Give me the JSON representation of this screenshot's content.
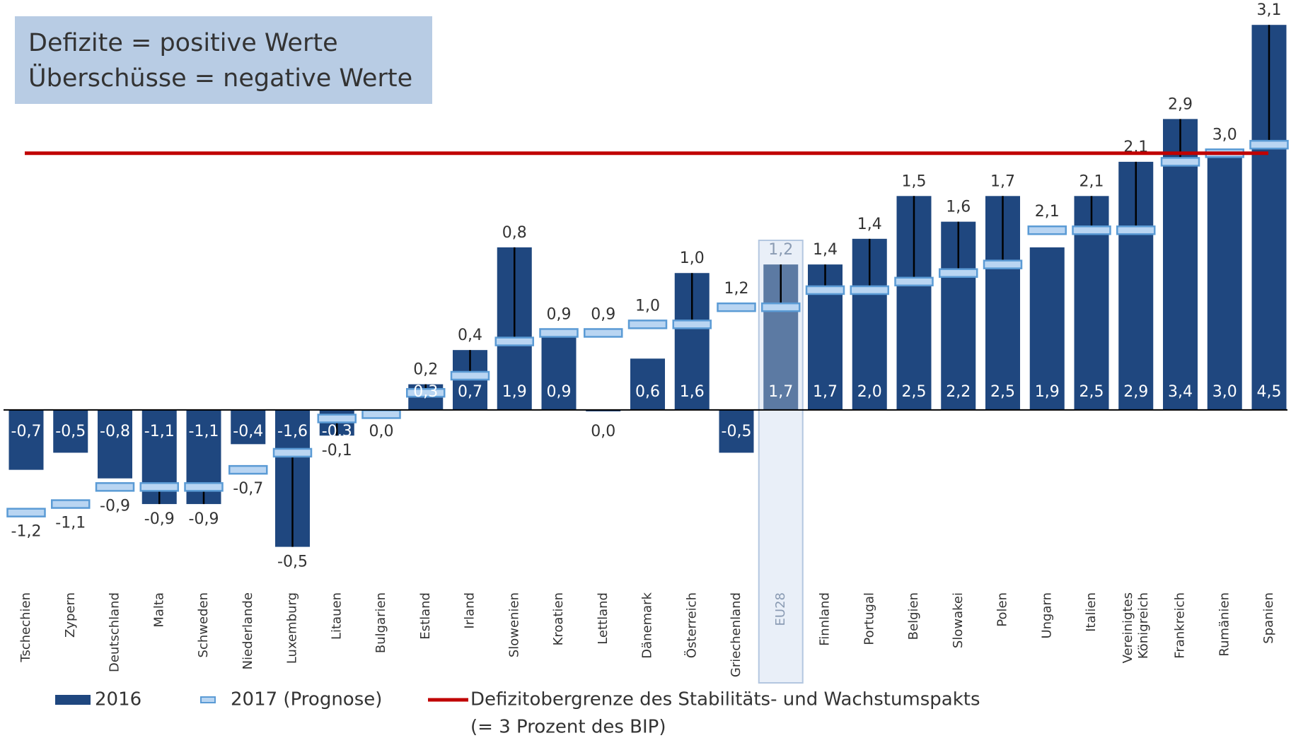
{
  "chart_data": {
    "type": "bar",
    "annotation": [
      "Defizite = positive Werte",
      "Überschüsse = negative Werte"
    ],
    "categories": [
      "Tschechien",
      "Zypern",
      "Deutschland",
      "Malta",
      "Schweden",
      "Niederlande",
      "Luxemburg",
      "Litauen",
      "Bulgarien",
      "Estland",
      "Irland",
      "Slowenien",
      "Kroatien",
      "Lettland",
      "Dänemark",
      "Österreich",
      "Griechenland",
      "EU28",
      "Finnland",
      "Portugal",
      "Belgien",
      "Slowakei",
      "Polen",
      "Ungarn",
      "Italien",
      "Vereinigtes Königreich",
      "Frankreich",
      "Rumänien",
      "Spanien"
    ],
    "highlight": "EU28",
    "series": [
      {
        "name": "2016",
        "color": "#1f477f",
        "highlight_color": "#5c7aa3",
        "values": [
          -0.7,
          -0.5,
          -0.8,
          -1.1,
          -1.1,
          -0.4,
          -1.6,
          -0.3,
          0,
          0.3,
          0.7,
          1.9,
          0.9,
          0,
          0.6,
          1.6,
          -0.5,
          1.7,
          1.7,
          2.0,
          2.5,
          2.2,
          2.5,
          1.9,
          2.5,
          2.9,
          3.4,
          3.0,
          4.5
        ],
        "value_labels": [
          "-0,7",
          "-0,5",
          "-0,8",
          "-1,1",
          "-1,1",
          "-0,4",
          "-1,6",
          "-0,3",
          "0,0",
          "0,3",
          "0,7",
          "1,9",
          "0,9",
          "0,0",
          "0,6",
          "1,6",
          "-0,5",
          "1,7",
          "1,7",
          "2,0",
          "2,5",
          "2,2",
          "2,5",
          "1,9",
          "2,5",
          "2,9",
          "3,4",
          "3,0",
          "4,5"
        ]
      },
      {
        "name": "2017 (Prognose)",
        "color": "#b9d5f2",
        "stroke": "#5b9bd5",
        "values": [
          -1.2,
          -1.1,
          -0.9,
          -0.9,
          -0.9,
          -0.7,
          -0.5,
          -0.1,
          -0.05,
          0.2,
          0.4,
          0.8,
          0.9,
          0.9,
          1.0,
          1.0,
          1.2,
          1.2,
          1.4,
          1.4,
          1.5,
          1.6,
          1.7,
          2.1,
          2.1,
          2.1,
          2.9,
          3.0,
          3.1
        ],
        "value_labels": [
          "-1,2",
          "-1,1",
          "-0,9",
          "-0,9",
          "-0,9",
          "-0,7",
          "-0,5",
          "-0,1",
          null,
          "0,2",
          "0,4",
          "0,8",
          "0,9",
          "0,9",
          "1,0",
          "1,0",
          "1,2",
          "1,2",
          "1,4",
          "1,4",
          "1,5",
          "1,6",
          "1,7",
          "2,1",
          "2,1",
          "2,1",
          "2,9",
          "3,0",
          "3,1"
        ]
      }
    ],
    "threshold": {
      "name": "Defizitobergrenze des Stabilitäts- und Wachstumspakts",
      "note": "(= 3 Prozent des BIP)",
      "value": 3.0,
      "color": "#c00000"
    },
    "ylim": [
      -2.0,
      4.7
    ]
  }
}
